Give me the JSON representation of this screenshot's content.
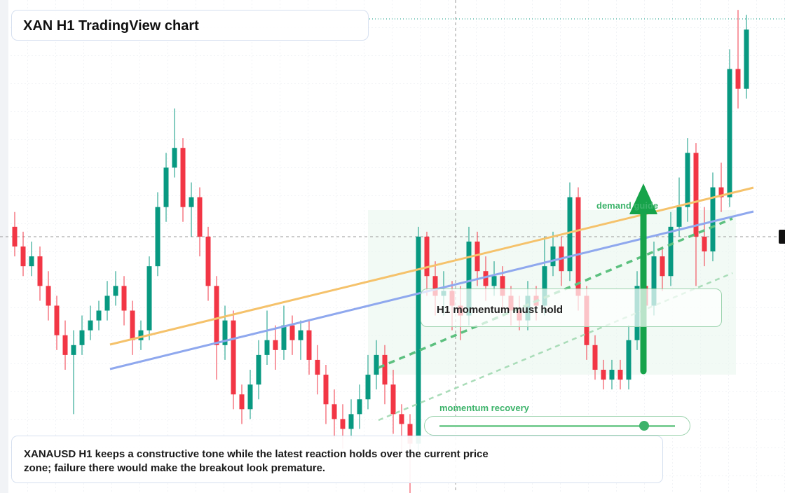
{
  "header": {
    "title": "XAN H1 TradingView chart"
  },
  "chart": {
    "candles": [
      [
        54,
        57,
        48,
        50
      ],
      [
        50,
        53,
        44,
        46
      ],
      [
        46,
        51,
        44,
        48
      ],
      [
        48,
        50,
        39,
        42
      ],
      [
        42,
        45,
        35,
        38
      ],
      [
        38,
        40,
        29,
        32
      ],
      [
        32,
        35,
        25,
        28
      ],
      [
        28,
        33,
        16,
        30
      ],
      [
        30,
        36,
        28,
        33
      ],
      [
        33,
        38,
        31,
        35
      ],
      [
        35,
        39,
        33,
        37
      ],
      [
        37,
        43,
        35,
        40
      ],
      [
        40,
        45,
        38,
        42
      ],
      [
        42,
        44,
        34,
        37
      ],
      [
        37,
        39,
        28,
        31
      ],
      [
        31,
        35,
        29,
        33
      ],
      [
        33,
        48,
        31,
        46
      ],
      [
        46,
        61,
        44,
        58
      ],
      [
        58,
        69,
        55,
        66
      ],
      [
        66,
        78,
        64,
        70
      ],
      [
        70,
        72,
        55,
        58
      ],
      [
        58,
        63,
        52,
        60
      ],
      [
        60,
        62,
        48,
        52
      ],
      [
        52,
        54,
        39,
        42
      ],
      [
        42,
        44,
        23,
        30
      ],
      [
        30,
        38,
        27,
        35
      ],
      [
        35,
        37,
        17,
        20
      ],
      [
        20,
        22,
        14,
        17
      ],
      [
        17,
        25,
        15,
        22
      ],
      [
        22,
        31,
        19,
        28
      ],
      [
        28,
        37,
        26,
        31
      ],
      [
        31,
        34,
        25,
        29
      ],
      [
        29,
        38,
        27,
        34
      ],
      [
        34,
        36,
        28,
        31
      ],
      [
        31,
        35,
        27,
        33
      ],
      [
        33,
        35,
        24,
        27
      ],
      [
        27,
        30,
        20,
        24
      ],
      [
        24,
        26,
        14,
        18
      ],
      [
        18,
        21,
        11,
        15
      ],
      [
        15,
        18,
        9,
        13
      ],
      [
        13,
        19,
        11,
        16
      ],
      [
        16,
        22,
        13,
        19
      ],
      [
        19,
        28,
        17,
        24
      ],
      [
        24,
        31,
        21,
        28
      ],
      [
        28,
        30,
        18,
        22
      ],
      [
        22,
        25,
        12,
        16
      ],
      [
        16,
        18,
        8,
        14
      ],
      [
        14,
        16,
        0,
        10
      ],
      [
        10,
        54,
        8,
        52
      ],
      [
        52,
        53,
        40,
        44
      ],
      [
        44,
        47,
        36,
        40
      ],
      [
        40,
        45,
        36,
        41
      ],
      [
        41,
        43,
        33,
        38
      ],
      [
        38,
        42,
        31,
        36
      ],
      [
        36,
        54,
        34,
        51
      ],
      [
        51,
        53,
        42,
        45
      ],
      [
        45,
        48,
        39,
        42
      ],
      [
        42,
        47,
        40,
        44
      ],
      [
        44,
        46,
        37,
        40
      ],
      [
        40,
        42,
        34,
        37
      ],
      [
        37,
        40,
        33,
        35
      ],
      [
        35,
        43,
        33,
        40
      ],
      [
        40,
        42,
        35,
        38
      ],
      [
        38,
        52,
        36,
        46
      ],
      [
        46,
        53,
        44,
        50
      ],
      [
        50,
        52,
        42,
        45
      ],
      [
        45,
        63,
        43,
        60
      ],
      [
        60,
        62,
        37,
        40
      ],
      [
        40,
        42,
        27,
        30
      ],
      [
        30,
        32,
        23,
        25
      ],
      [
        25,
        27,
        21,
        23
      ],
      [
        23,
        27,
        21,
        25
      ],
      [
        25,
        27,
        21,
        23
      ],
      [
        23,
        34,
        21,
        31
      ],
      [
        31,
        45,
        29,
        42
      ],
      [
        42,
        44,
        35,
        38
      ],
      [
        38,
        51,
        36,
        48
      ],
      [
        48,
        50,
        41,
        44
      ],
      [
        44,
        57,
        42,
        54
      ],
      [
        54,
        64,
        52,
        58
      ],
      [
        58,
        72,
        55,
        69
      ],
      [
        69,
        71,
        42,
        52
      ],
      [
        52,
        58,
        46,
        49
      ],
      [
        49,
        65,
        47,
        62
      ],
      [
        62,
        67,
        57,
        60
      ],
      [
        60,
        90,
        58,
        86
      ],
      [
        86,
        98,
        78,
        82
      ],
      [
        82,
        97,
        80,
        94
      ]
    ],
    "up_color": "#089981",
    "down_color": "#f23645"
  },
  "annotations": {
    "demand": "demand guide",
    "hold": "H1 momentum must hold",
    "recovery": "momentum recovery"
  },
  "caption": "XANAUSD H1 keeps a constructive tone while the latest reaction holds over the current price zone; failure there would make the breakout look premature."
}
